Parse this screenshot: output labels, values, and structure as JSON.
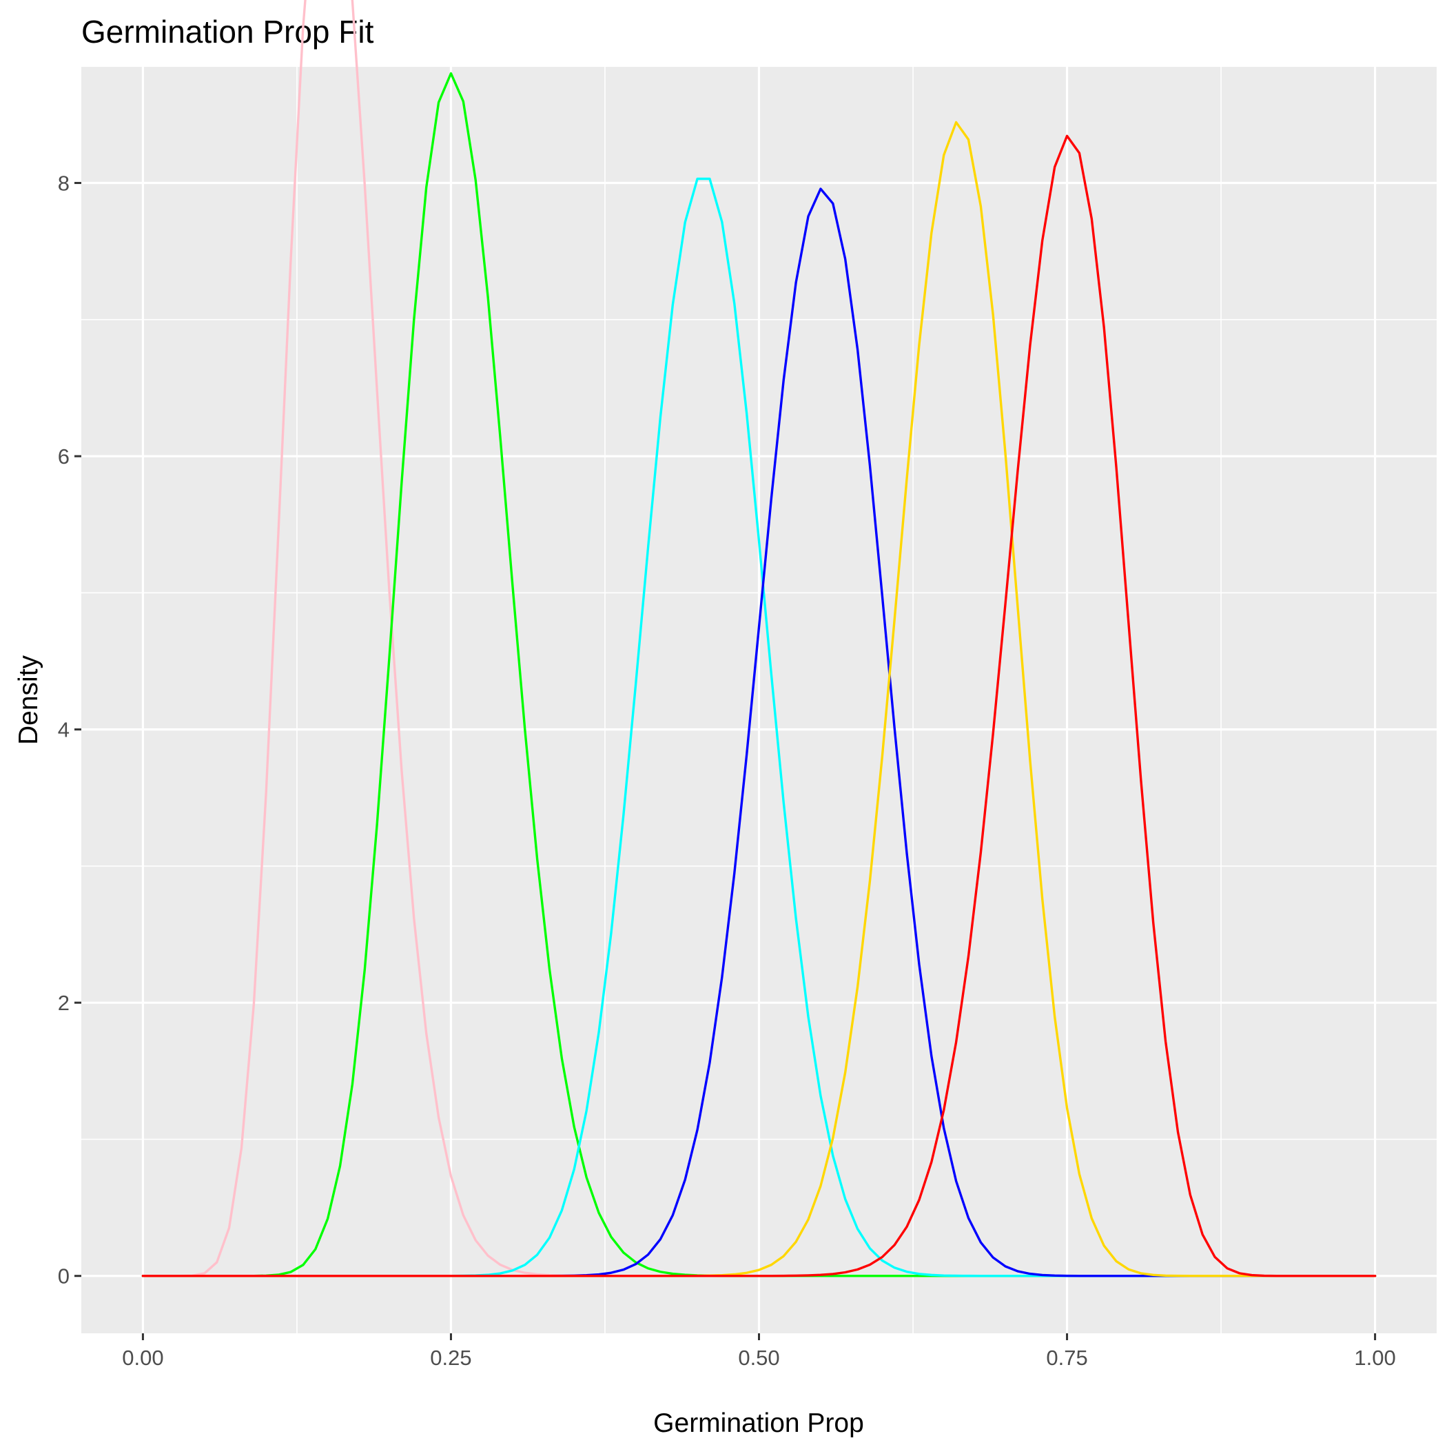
{
  "chart_data": {
    "type": "line",
    "title": "Germination Prop Fit",
    "xlabel": "Germination Prop",
    "ylabel": "Density",
    "xlim": [
      -0.05,
      1.05
    ],
    "ylim": [
      -0.42,
      8.85
    ],
    "x_ticks": [
      0,
      0.25,
      0.5,
      0.75,
      1
    ],
    "x_tick_labels": [
      "0.00",
      "0.25",
      "0.50",
      "0.75",
      "1.00"
    ],
    "y_ticks": [
      0,
      2,
      4,
      6,
      8
    ],
    "y_tick_labels": [
      "0",
      "2",
      "4",
      "6",
      "8"
    ],
    "grid": true,
    "legend": "none",
    "series": [
      {
        "color": "#FFC0CB",
        "distribution": "beta",
        "alpha": 14.5,
        "beta": 77.5
      },
      {
        "color": "#00FF00",
        "distribution": "beta",
        "alpha": 23.5,
        "beta": 68.5
      },
      {
        "color": "#00FFFF",
        "distribution": "beta",
        "alpha": 46.5,
        "beta": 55.5
      },
      {
        "color": "#0000FF",
        "distribution": "beta",
        "alpha": 54.5,
        "beta": 44.5
      },
      {
        "color": "#FFD700",
        "distribution": "beta",
        "alpha": 66.5,
        "beta": 34.5
      },
      {
        "color": "#FF0000",
        "distribution": "beta",
        "alpha": 61.5,
        "beta": 21.0
      }
    ]
  }
}
